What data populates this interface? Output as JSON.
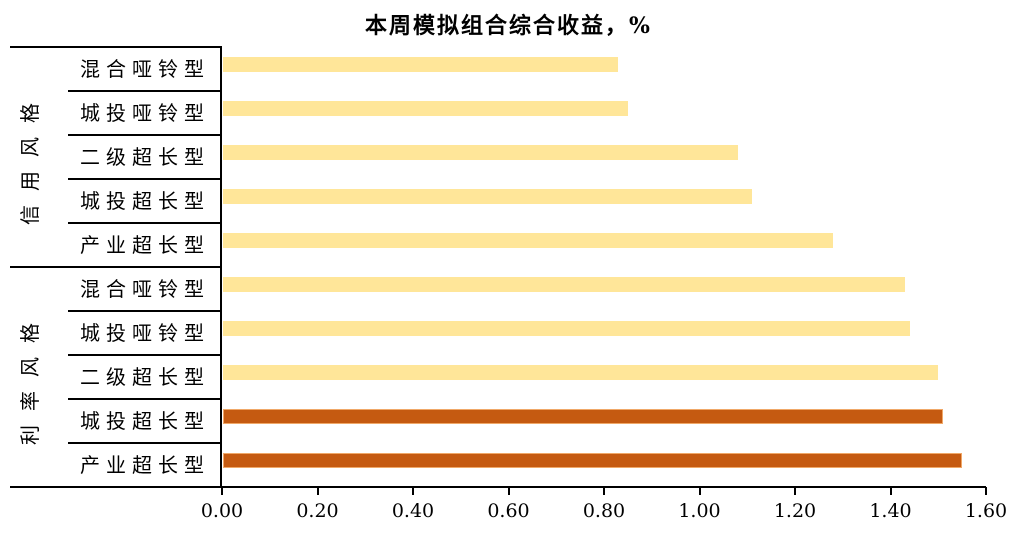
{
  "title": "本周模拟组合综合收益，%",
  "chart_data": {
    "type": "bar",
    "orientation": "horizontal",
    "title": "本周模拟组合综合收益，%",
    "groups": [
      {
        "name": "信用风格",
        "items": [
          {
            "label": "混合哑铃型",
            "value": 0.83,
            "highlight": false
          },
          {
            "label": "城投哑铃型",
            "value": 0.85,
            "highlight": false
          },
          {
            "label": "二级超长型",
            "value": 1.08,
            "highlight": false
          },
          {
            "label": "城投超长型",
            "value": 1.11,
            "highlight": false
          },
          {
            "label": "产业超长型",
            "value": 1.28,
            "highlight": false
          }
        ]
      },
      {
        "name": "利率风格",
        "items": [
          {
            "label": "混合哑铃型",
            "value": 1.43,
            "highlight": false
          },
          {
            "label": "城投哑铃型",
            "value": 1.44,
            "highlight": false
          },
          {
            "label": "二级超长型",
            "value": 1.5,
            "highlight": false
          },
          {
            "label": "城投超长型",
            "value": 1.51,
            "highlight": true
          },
          {
            "label": "产业超长型",
            "value": 1.55,
            "highlight": true
          }
        ]
      }
    ],
    "x_axis": {
      "min": 0,
      "max": 1.6,
      "tick_interval": 0.2,
      "tick_labels": [
        "0.00",
        "0.20",
        "0.40",
        "0.60",
        "0.80",
        "1.00",
        "1.20",
        "1.40",
        "1.60"
      ],
      "grid": false
    },
    "legend": "none",
    "colors": {
      "default_bar": "#FFE699",
      "highlight_bar": "#C55A11",
      "highlight_border": "#F0A868",
      "axis": "#000000",
      "text": "#000000"
    }
  }
}
